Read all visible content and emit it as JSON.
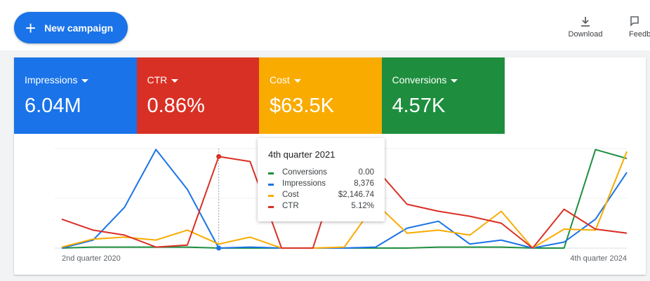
{
  "toolbar": {
    "button": "New campaign",
    "actions": [
      "Download",
      "Feedback"
    ]
  },
  "metrics": [
    {
      "label": "Impressions",
      "value": "6.04M",
      "color": "#1a73e8"
    },
    {
      "label": "CTR",
      "value": "0.86%",
      "color": "#d93025"
    },
    {
      "label": "Cost",
      "value": "$63.5K",
      "color": "#f9ab00"
    },
    {
      "label": "Conversions",
      "value": "4.57K",
      "color": "#1e8e3e"
    }
  ],
  "chart_data": {
    "type": "line",
    "categories": [
      "2nd quarter 2020",
      null,
      null,
      null,
      null,
      null,
      null,
      null,
      null,
      null,
      null,
      null,
      null,
      null,
      null,
      null,
      null,
      null,
      "4th quarter 2024"
    ],
    "series": [
      {
        "name": "Conversions",
        "color": "#1e8e3e",
        "values": [
          0,
          1,
          1,
          1,
          1,
          0,
          0,
          0,
          0,
          0,
          0,
          0,
          1,
          1,
          1,
          0,
          0,
          99,
          90
        ]
      },
      {
        "name": "Impressions",
        "color": "#1a73e8",
        "values": [
          0,
          8,
          41,
          99,
          59,
          0,
          1,
          0,
          0,
          0,
          1,
          20,
          27,
          4,
          8,
          0,
          6,
          29,
          76
        ]
      },
      {
        "name": "Cost",
        "color": "#f9ab00",
        "values": [
          1,
          9,
          11,
          8,
          18,
          4,
          11,
          0,
          0,
          1,
          45,
          15,
          18,
          13,
          37,
          0,
          19,
          18,
          97
        ]
      },
      {
        "name": "CTR",
        "color": "#d93025",
        "values": [
          29,
          18,
          13,
          1,
          3,
          92,
          87,
          0,
          0,
          98,
          80,
          44,
          37,
          32,
          25,
          0,
          39,
          19,
          15
        ]
      }
    ],
    "ylim": [
      0,
      100
    ],
    "yticks": [
      0,
      50,
      100
    ],
    "grid": true,
    "tooltip": {
      "title": "4th quarter 2021",
      "hover_index": 5,
      "values": [
        "0.00",
        "8,376",
        "$2,146.74",
        "5.12%"
      ]
    }
  }
}
